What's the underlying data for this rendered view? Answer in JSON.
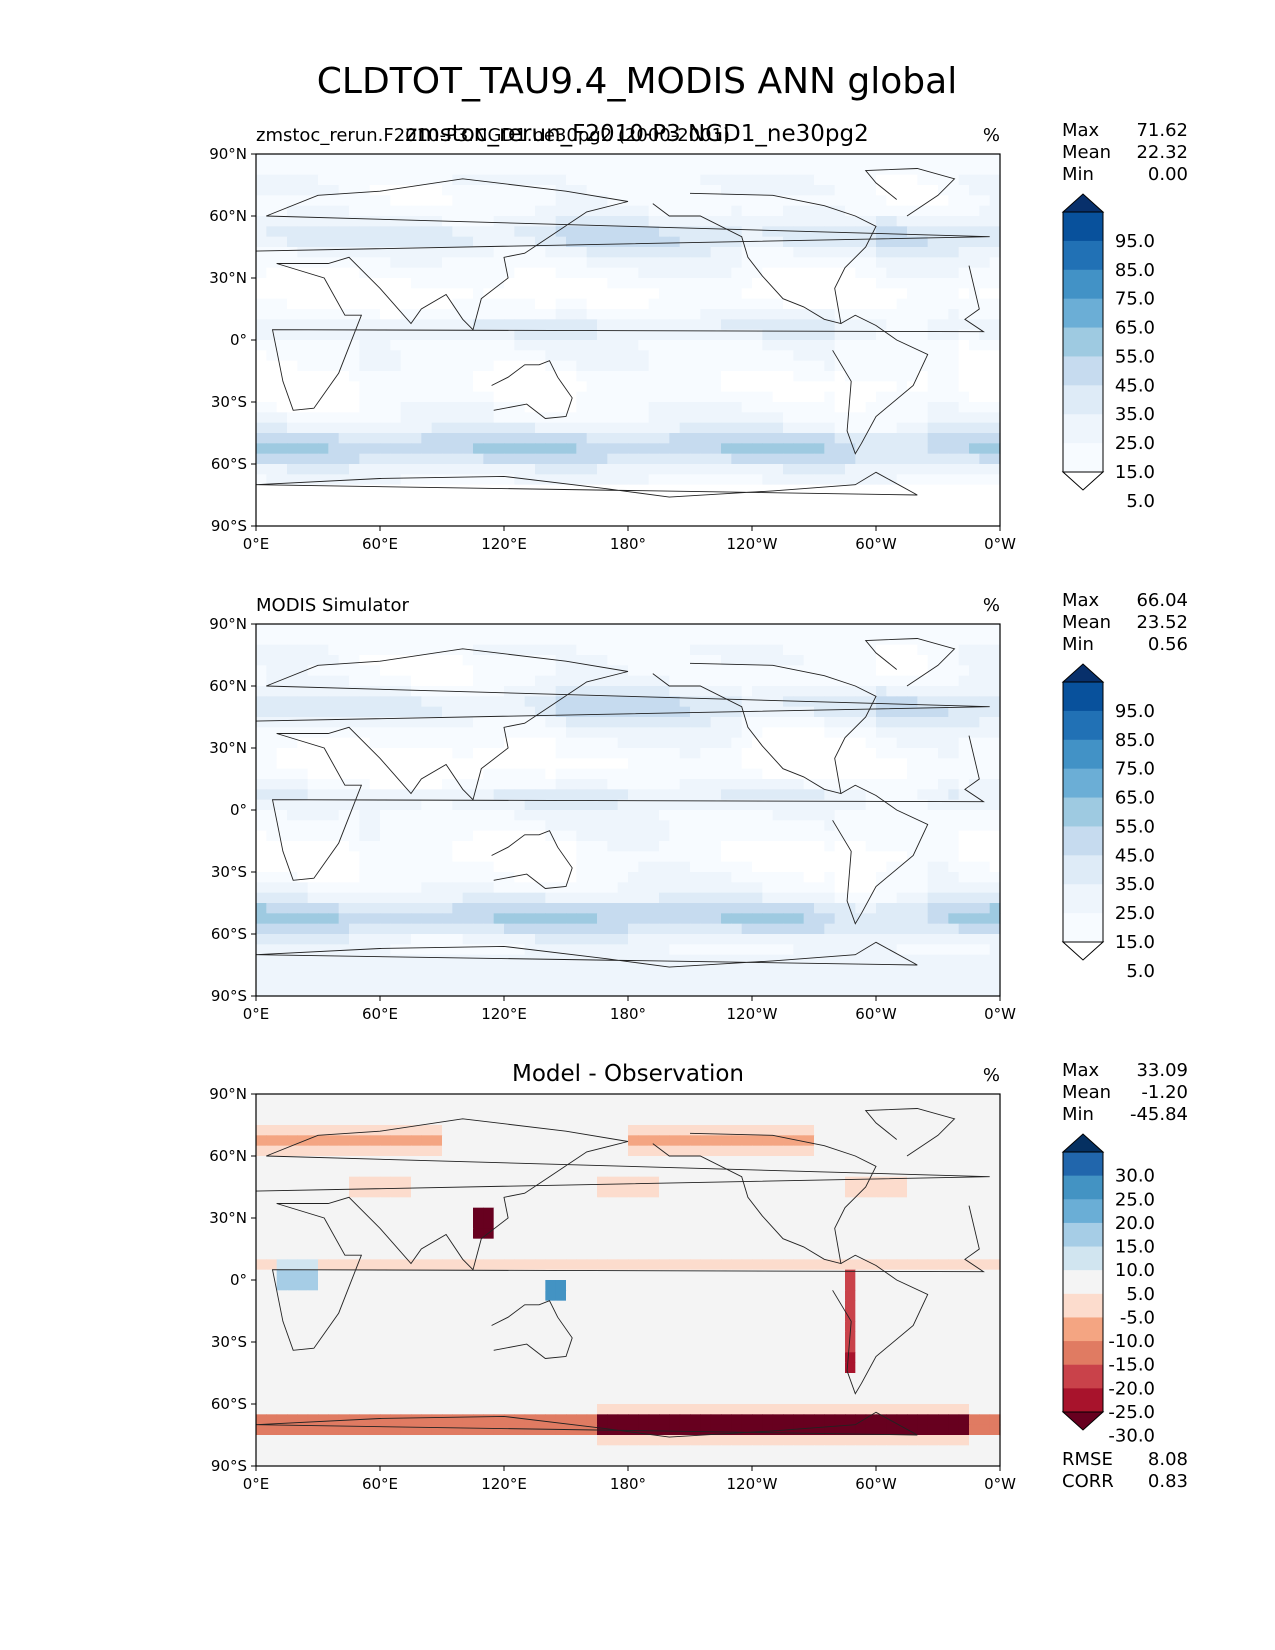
{
  "figure": {
    "title": "CLDTOT_TAU9.4_MODIS ANN global",
    "overlay_title": "zmstoc_rerun_F2010-P3 NGD1_ne30pg2"
  },
  "chart_data": [
    {
      "type": "heatmap",
      "name": "test",
      "left_title": "zmstoc_rerun.F2010-P3.NGD1.ne30pg2 (2000-2001)",
      "center_title": "",
      "units": "%",
      "lat_ticks": [
        "90°N",
        "60°N",
        "30°N",
        "0°",
        "30°S",
        "60°S",
        "90°S"
      ],
      "lon_ticks": [
        "0°E",
        "60°E",
        "120°E",
        "180°",
        "120°W",
        "60°W",
        "0°W"
      ],
      "stats": [
        {
          "label": "Max",
          "value": "71.62"
        },
        {
          "label": "Mean",
          "value": "22.32"
        },
        {
          "label": "Min",
          "value": "0.00"
        }
      ],
      "colorbar": {
        "levels": [
          "95.0",
          "85.0",
          "75.0",
          "65.0",
          "55.0",
          "45.0",
          "35.0",
          "25.0",
          "15.0",
          "5.0"
        ],
        "colors": [
          "#08306b",
          "#08519c",
          "#2171b5",
          "#4292c6",
          "#6baed6",
          "#9ecae1",
          "#c6dbef",
          "#deebf7",
          "#eef5fc",
          "#f7fbff",
          "#ffffff"
        ]
      },
      "extra_stats": []
    },
    {
      "type": "heatmap",
      "name": "reference",
      "left_title": "MODIS Simulator",
      "center_title": "",
      "units": "%",
      "lat_ticks": [
        "90°N",
        "60°N",
        "30°N",
        "0°",
        "30°S",
        "60°S",
        "90°S"
      ],
      "lon_ticks": [
        "0°E",
        "60°E",
        "120°E",
        "180°",
        "120°W",
        "60°W",
        "0°W"
      ],
      "stats": [
        {
          "label": "Max",
          "value": "66.04"
        },
        {
          "label": "Mean",
          "value": "23.52"
        },
        {
          "label": "Min",
          "value": "0.56"
        }
      ],
      "colorbar": {
        "levels": [
          "95.0",
          "85.0",
          "75.0",
          "65.0",
          "55.0",
          "45.0",
          "35.0",
          "25.0",
          "15.0",
          "5.0"
        ],
        "colors": [
          "#08306b",
          "#08519c",
          "#2171b5",
          "#4292c6",
          "#6baed6",
          "#9ecae1",
          "#c6dbef",
          "#deebf7",
          "#eef5fc",
          "#f7fbff",
          "#ffffff"
        ]
      },
      "extra_stats": []
    },
    {
      "type": "heatmap",
      "name": "diff",
      "left_title": "",
      "center_title": "Model - Observation",
      "units": "%",
      "lat_ticks": [
        "90°N",
        "60°N",
        "30°N",
        "0°",
        "30°S",
        "60°S",
        "90°S"
      ],
      "lon_ticks": [
        "0°E",
        "60°E",
        "120°E",
        "180°",
        "120°W",
        "60°W",
        "0°W"
      ],
      "stats": [
        {
          "label": "Max",
          "value": "33.09"
        },
        {
          "label": "Mean",
          "value": "-1.20"
        },
        {
          "label": "Min",
          "value": "-45.84"
        }
      ],
      "colorbar": {
        "levels": [
          "30.0",
          "25.0",
          "20.0",
          "15.0",
          "10.0",
          "5.0",
          "-5.0",
          "-10.0",
          "-15.0",
          "-20.0",
          "-25.0",
          "-30.0"
        ],
        "colors": [
          "#053061",
          "#2166ac",
          "#4393c3",
          "#6aaed6",
          "#a6cde6",
          "#d1e5f0",
          "#f4f4f4",
          "#fcdccd",
          "#f4a582",
          "#e07b62",
          "#c9424a",
          "#a8132c",
          "#67001f"
        ]
      },
      "extra_stats": [
        {
          "label": "RMSE",
          "value": "8.08"
        },
        {
          "label": "CORR",
          "value": "0.83"
        }
      ]
    }
  ]
}
